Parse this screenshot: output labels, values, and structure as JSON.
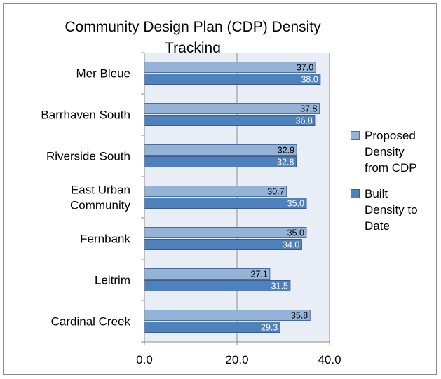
{
  "chart_data": {
    "type": "bar",
    "orientation": "horizontal",
    "title": "Community Design Plan (CDP) Density Tracking",
    "categories": [
      "Mer Bleue",
      "Barrhaven South",
      "Riverside South",
      "East Urban Community",
      "Fernbank",
      "Leitrim",
      "Cardinal Creek"
    ],
    "category_lines": [
      [
        "Mer Bleue"
      ],
      [
        "Barrhaven South"
      ],
      [
        "Riverside South"
      ],
      [
        "East Urban",
        "Community"
      ],
      [
        "Fernbank"
      ],
      [
        "Leitrim"
      ],
      [
        "Cardinal Creek"
      ]
    ],
    "series": [
      {
        "name": "Proposed Density from CDP",
        "legend_lines": [
          "Proposed",
          "Density",
          "from CDP"
        ],
        "color": "#95b3d7",
        "values": [
          37.0,
          37.8,
          32.9,
          30.7,
          35.0,
          27.1,
          35.8
        ]
      },
      {
        "name": "Built Density to Date",
        "legend_lines": [
          "Built",
          "Density to",
          "Date"
        ],
        "color": "#4f81bd",
        "values": [
          38.0,
          36.8,
          32.8,
          35.0,
          34.0,
          31.5,
          29.3
        ]
      }
    ],
    "xlim": [
      0,
      40
    ],
    "xticks": [
      0,
      20,
      40
    ],
    "xtick_labels": [
      "0.0",
      "20.0",
      "40.0"
    ],
    "grid": "vertical",
    "legend_position": "right",
    "plot_background": "#e9eef6"
  }
}
